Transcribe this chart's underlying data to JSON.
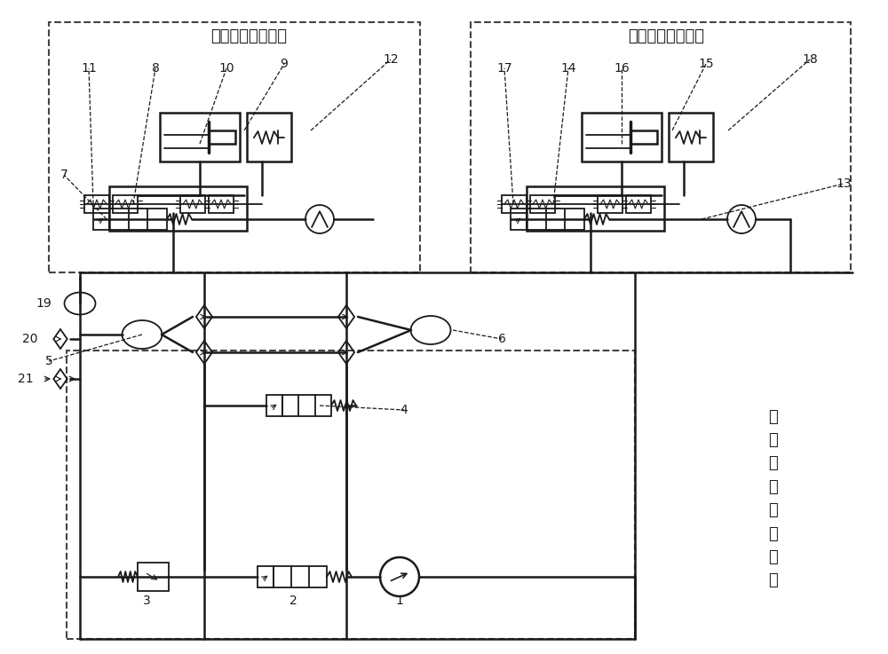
{
  "unit1_label": "第一液压驱动单元",
  "unit2_label": "第二液压驱动单元",
  "source_label_lines": [
    "液",
    "压",
    "两",
    "级",
    "油",
    "源",
    "单",
    "元"
  ],
  "bg_color": "#ffffff",
  "lc": "#1a1a1a",
  "fontsize_label": 13,
  "fontsize_num": 10
}
